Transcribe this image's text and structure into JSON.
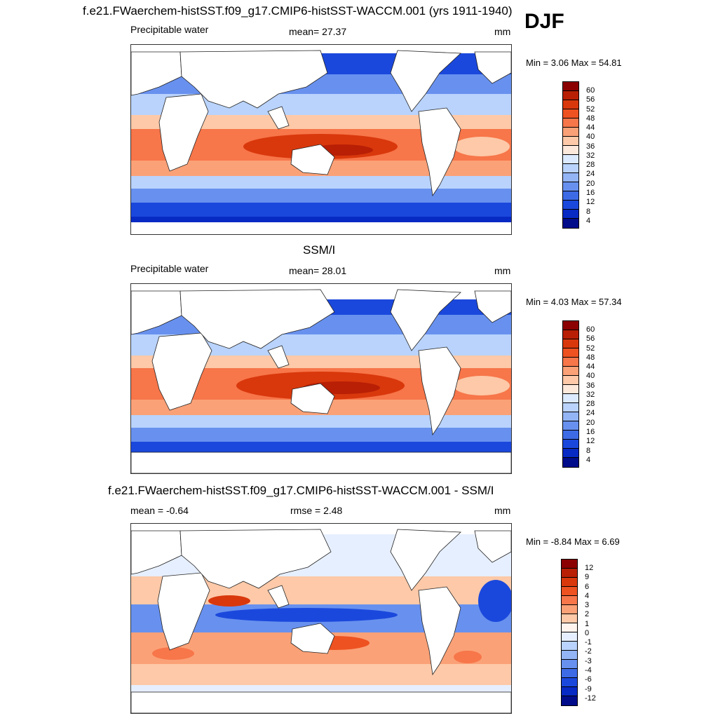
{
  "season": "DJF",
  "panels": [
    {
      "title": "f.e21.FWaerchem-histSST.f09_g17.CMIP6-histSST-WACCM.001 (yrs 1911-1940)",
      "left_label": "Precipitable water",
      "center_label": "mean=  27.37",
      "units": "mm",
      "minmax": "Min =   3.06 Max =  54.81",
      "colorbar": {
        "ticks": [
          "60",
          "56",
          "52",
          "48",
          "44",
          "40",
          "36",
          "32",
          "28",
          "24",
          "20",
          "16",
          "12",
          "8",
          "4"
        ],
        "colors": [
          "#8b0000",
          "#b81f05",
          "#d9380c",
          "#ee5221",
          "#f7764a",
          "#fba177",
          "#fdc9a8",
          "#fde8dc",
          "#dceaff",
          "#b9d3fc",
          "#93b5f6",
          "#6891ef",
          "#3d6be6",
          "#1b48dc",
          "#0729c4",
          "#000c8a"
        ]
      }
    },
    {
      "title": "SSM/I",
      "left_label": "Precipitable water",
      "center_label": "mean=  28.01",
      "units": "mm",
      "minmax": "Min =   4.03 Max =  57.34",
      "colorbar": {
        "ticks": [
          "60",
          "56",
          "52",
          "48",
          "44",
          "40",
          "36",
          "32",
          "28",
          "24",
          "20",
          "16",
          "12",
          "8",
          "4"
        ],
        "colors": [
          "#8b0000",
          "#b81f05",
          "#d9380c",
          "#ee5221",
          "#f7764a",
          "#fba177",
          "#fdc9a8",
          "#fde8dc",
          "#dceaff",
          "#b9d3fc",
          "#93b5f6",
          "#6891ef",
          "#3d6be6",
          "#1b48dc",
          "#0729c4",
          "#000c8a"
        ]
      }
    },
    {
      "title": "f.e21.FWaerchem-histSST.f09_g17.CMIP6-histSST-WACCM.001 - SSM/I",
      "left_label": "mean =  -0.64",
      "center_label": "rmse =   2.48",
      "units": "mm",
      "minmax": "Min =  -8.84 Max =   6.69",
      "colorbar": {
        "ticks": [
          "12",
          "9",
          "6",
          "4",
          "3",
          "2",
          "1",
          "0",
          "-1",
          "-2",
          "-3",
          "-4",
          "-6",
          "-9",
          "-12"
        ],
        "colors": [
          "#8b0000",
          "#b81f05",
          "#d9380c",
          "#ee5221",
          "#f7764a",
          "#fba177",
          "#fdc9a8",
          "#fff4ee",
          "#e6efff",
          "#b9d3fc",
          "#93b5f6",
          "#6891ef",
          "#3d6be6",
          "#1b48dc",
          "#0729c4",
          "#000c8a"
        ]
      }
    }
  ]
}
